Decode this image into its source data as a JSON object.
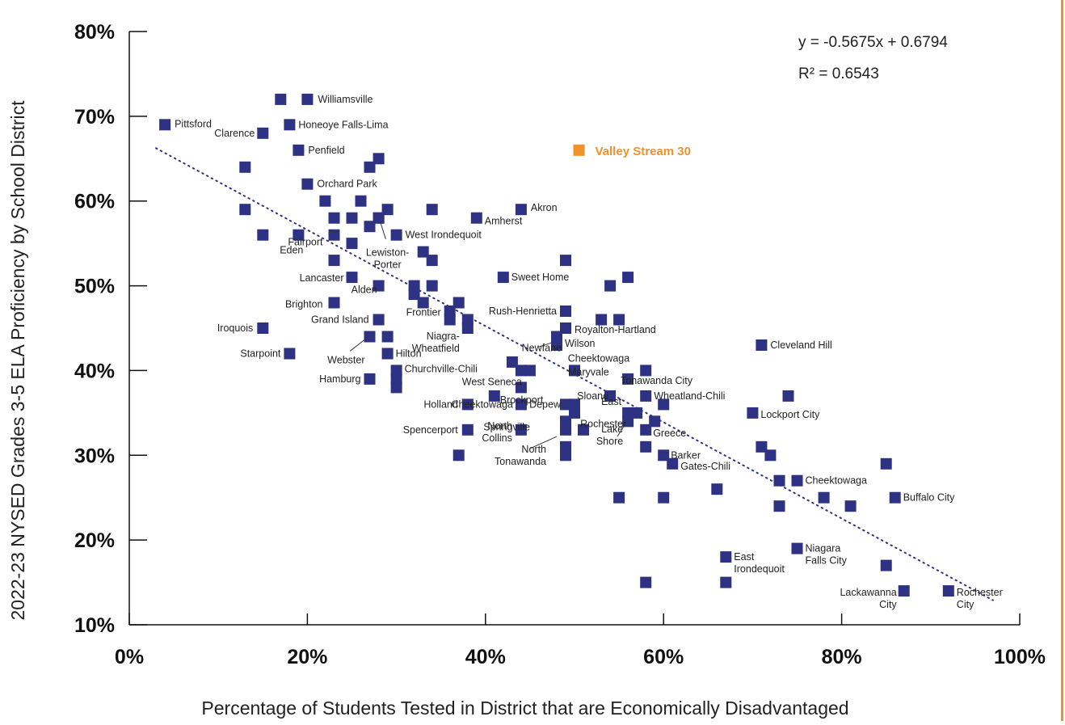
{
  "colors": {
    "point": "#2e3282",
    "highlight": "#f0912a",
    "trend": "#2e3282",
    "axis": "#111111",
    "border_right": "#f0912a"
  },
  "chart_data": {
    "type": "scatter",
    "title": "",
    "xlabel": "Percentage of Students Tested in District that are Economically Disadvantaged",
    "ylabel": "2022-23 NYSED Grades 3-5 ELA Proficiency by School District",
    "xlim": [
      0,
      1
    ],
    "ylim": [
      0.1,
      0.8
    ],
    "x_ticks": [
      0,
      0.2,
      0.4,
      0.6,
      0.8,
      1.0
    ],
    "x_tick_labels": [
      "0%",
      "20%",
      "40%",
      "60%",
      "80%",
      "100%"
    ],
    "y_ticks": [
      0.1,
      0.2,
      0.3,
      0.4,
      0.5,
      0.6,
      0.7,
      0.8
    ],
    "y_tick_labels": [
      "10%",
      "20%",
      "30%",
      "40%",
      "50%",
      "60%",
      "70%",
      "80%"
    ],
    "grid": false,
    "trendline": {
      "slope": -0.5675,
      "intercept": 0.6794,
      "x_range": [
        0.03,
        0.97
      ],
      "style": "dotted"
    },
    "annotations": {
      "equation": "y = -0.5675x + 0.6794",
      "r2": "R² = 0.6543"
    },
    "highlight": {
      "name": "Valley Stream 30",
      "x": 0.505,
      "y": 0.66
    },
    "points": [
      {
        "x": 0.04,
        "y": 0.69,
        "label": "Pittsford"
      },
      {
        "x": 0.15,
        "y": 0.68,
        "label": "Clarence"
      },
      {
        "x": 0.17,
        "y": 0.72
      },
      {
        "x": 0.2,
        "y": 0.72,
        "label": "Williamsville"
      },
      {
        "x": 0.18,
        "y": 0.69,
        "label": "Honeoye Falls-Lima"
      },
      {
        "x": 0.19,
        "y": 0.66,
        "label": "Penfield"
      },
      {
        "x": 0.13,
        "y": 0.64
      },
      {
        "x": 0.27,
        "y": 0.64
      },
      {
        "x": 0.28,
        "y": 0.65
      },
      {
        "x": 0.2,
        "y": 0.62,
        "label": "Orchard Park"
      },
      {
        "x": 0.22,
        "y": 0.6
      },
      {
        "x": 0.26,
        "y": 0.6
      },
      {
        "x": 0.13,
        "y": 0.59
      },
      {
        "x": 0.23,
        "y": 0.58
      },
      {
        "x": 0.25,
        "y": 0.58
      },
      {
        "x": 0.28,
        "y": 0.58
      },
      {
        "x": 0.29,
        "y": 0.59
      },
      {
        "x": 0.34,
        "y": 0.59
      },
      {
        "x": 0.44,
        "y": 0.59,
        "label": "Akron"
      },
      {
        "x": 0.39,
        "y": 0.58,
        "label": "Amherst"
      },
      {
        "x": 0.23,
        "y": 0.56,
        "label": "Fairport"
      },
      {
        "x": 0.15,
        "y": 0.56
      },
      {
        "x": 0.19,
        "y": 0.56,
        "label": "Eden"
      },
      {
        "x": 0.27,
        "y": 0.57
      },
      {
        "x": 0.25,
        "y": 0.55
      },
      {
        "x": 0.3,
        "y": 0.56,
        "label": "West Irondequoit"
      },
      {
        "x": 0.28,
        "y": 0.58,
        "label": "Lewiston-Porter"
      },
      {
        "x": 0.33,
        "y": 0.54
      },
      {
        "x": 0.23,
        "y": 0.53
      },
      {
        "x": 0.34,
        "y": 0.53
      },
      {
        "x": 0.49,
        "y": 0.53
      },
      {
        "x": 0.25,
        "y": 0.51,
        "label": "Lancaster"
      },
      {
        "x": 0.28,
        "y": 0.5,
        "label": "Alden"
      },
      {
        "x": 0.32,
        "y": 0.5
      },
      {
        "x": 0.32,
        "y": 0.49
      },
      {
        "x": 0.34,
        "y": 0.5
      },
      {
        "x": 0.42,
        "y": 0.51,
        "label": "Sweet Home"
      },
      {
        "x": 0.54,
        "y": 0.5
      },
      {
        "x": 0.56,
        "y": 0.51
      },
      {
        "x": 0.23,
        "y": 0.48,
        "label": "Brighton"
      },
      {
        "x": 0.33,
        "y": 0.48
      },
      {
        "x": 0.37,
        "y": 0.48
      },
      {
        "x": 0.49,
        "y": 0.47,
        "label": "Rush-Henrietta"
      },
      {
        "x": 0.36,
        "y": 0.47
      },
      {
        "x": 0.28,
        "y": 0.46,
        "label": "Grand Island"
      },
      {
        "x": 0.36,
        "y": 0.46,
        "label": "Frontier"
      },
      {
        "x": 0.38,
        "y": 0.46
      },
      {
        "x": 0.38,
        "y": 0.45,
        "label": "Niagra-Wheatfield"
      },
      {
        "x": 0.53,
        "y": 0.46
      },
      {
        "x": 0.55,
        "y": 0.46
      },
      {
        "x": 0.15,
        "y": 0.45,
        "label": "Iroquois"
      },
      {
        "x": 0.49,
        "y": 0.45,
        "label": "Royalton-Hartland"
      },
      {
        "x": 0.27,
        "y": 0.44,
        "label": "Webster"
      },
      {
        "x": 0.29,
        "y": 0.44
      },
      {
        "x": 0.48,
        "y": 0.44,
        "label": "Newfane"
      },
      {
        "x": 0.48,
        "y": 0.43,
        "label": "Wilson"
      },
      {
        "x": 0.71,
        "y": 0.43,
        "label": "Cleveland Hill"
      },
      {
        "x": 0.18,
        "y": 0.42,
        "label": "Starpoint"
      },
      {
        "x": 0.29,
        "y": 0.42,
        "label": "Hilton"
      },
      {
        "x": 0.43,
        "y": 0.41
      },
      {
        "x": 0.3,
        "y": 0.4,
        "label": "Churchville-Chili"
      },
      {
        "x": 0.44,
        "y": 0.4
      },
      {
        "x": 0.45,
        "y": 0.4
      },
      {
        "x": 0.5,
        "y": 0.4,
        "label": "Maryvale"
      },
      {
        "x": 0.58,
        "y": 0.4,
        "label": "Cheektowaga"
      },
      {
        "x": 0.27,
        "y": 0.39,
        "label": "Hamburg"
      },
      {
        "x": 0.3,
        "y": 0.39
      },
      {
        "x": 0.3,
        "y": 0.38
      },
      {
        "x": 0.56,
        "y": 0.39,
        "label": "Tonawanda City"
      },
      {
        "x": 0.44,
        "y": 0.38,
        "label": "West Seneca"
      },
      {
        "x": 0.41,
        "y": 0.37,
        "label": "Brockport"
      },
      {
        "x": 0.54,
        "y": 0.37,
        "label": "Sloane"
      },
      {
        "x": 0.58,
        "y": 0.37,
        "label": "Wheatland-Chili"
      },
      {
        "x": 0.74,
        "y": 0.37
      },
      {
        "x": 0.38,
        "y": 0.36,
        "label": "Holland"
      },
      {
        "x": 0.44,
        "y": 0.36,
        "label": "Cheektowaga"
      },
      {
        "x": 0.49,
        "y": 0.36,
        "label": "Depew"
      },
      {
        "x": 0.5,
        "y": 0.36
      },
      {
        "x": 0.6,
        "y": 0.36
      },
      {
        "x": 0.5,
        "y": 0.35
      },
      {
        "x": 0.56,
        "y": 0.35,
        "label": "East"
      },
      {
        "x": 0.57,
        "y": 0.35
      },
      {
        "x": 0.7,
        "y": 0.35,
        "label": "Lockport City"
      },
      {
        "x": 0.49,
        "y": 0.34,
        "label": "Springville"
      },
      {
        "x": 0.56,
        "y": 0.34,
        "label": "Rochester"
      },
      {
        "x": 0.59,
        "y": 0.34
      },
      {
        "x": 0.38,
        "y": 0.33,
        "label": "Spencerport"
      },
      {
        "x": 0.44,
        "y": 0.33,
        "label": "North Collins"
      },
      {
        "x": 0.49,
        "y": 0.33
      },
      {
        "x": 0.51,
        "y": 0.33
      },
      {
        "x": 0.58,
        "y": 0.33,
        "label": "Greece"
      },
      {
        "x": 0.49,
        "y": 0.31,
        "label": "North Tonawanda"
      },
      {
        "x": 0.58,
        "y": 0.31,
        "label": "Lake Shore"
      },
      {
        "x": 0.71,
        "y": 0.31
      },
      {
        "x": 0.37,
        "y": 0.3
      },
      {
        "x": 0.49,
        "y": 0.3
      },
      {
        "x": 0.6,
        "y": 0.3,
        "label": "Barker"
      },
      {
        "x": 0.72,
        "y": 0.3
      },
      {
        "x": 0.61,
        "y": 0.29,
        "label": "Gates-Chili"
      },
      {
        "x": 0.85,
        "y": 0.29
      },
      {
        "x": 0.73,
        "y": 0.27
      },
      {
        "x": 0.75,
        "y": 0.27,
        "label": "Cheektowaga"
      },
      {
        "x": 0.66,
        "y": 0.26
      },
      {
        "x": 0.55,
        "y": 0.25
      },
      {
        "x": 0.6,
        "y": 0.25
      },
      {
        "x": 0.78,
        "y": 0.25
      },
      {
        "x": 0.86,
        "y": 0.25,
        "label": "Buffalo City"
      },
      {
        "x": 0.73,
        "y": 0.24
      },
      {
        "x": 0.81,
        "y": 0.24
      },
      {
        "x": 0.75,
        "y": 0.19,
        "label": "Niagara Falls City"
      },
      {
        "x": 0.67,
        "y": 0.18,
        "label": "East Irondequoit"
      },
      {
        "x": 0.85,
        "y": 0.17
      },
      {
        "x": 0.58,
        "y": 0.15
      },
      {
        "x": 0.67,
        "y": 0.15
      },
      {
        "x": 0.87,
        "y": 0.14,
        "label": "Lackawanna City"
      },
      {
        "x": 0.92,
        "y": 0.14,
        "label": "Rochester City"
      }
    ]
  }
}
